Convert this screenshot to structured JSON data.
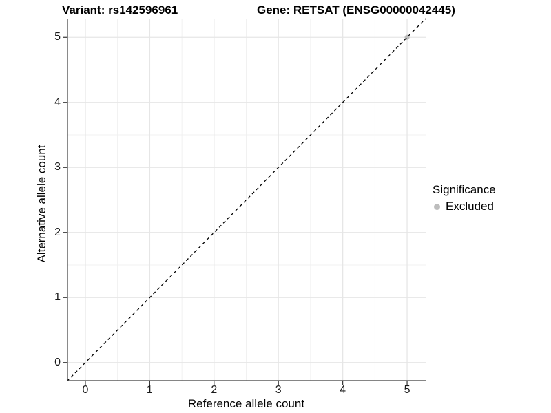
{
  "chart_data": {
    "type": "scatter",
    "titles": {
      "variant": "Variant: rs142596961",
      "gene": "Gene: RETSAT (ENSG00000042445)"
    },
    "xlabel": "Reference allele count",
    "ylabel": "Alternative allele count",
    "xlim": [
      -0.2885,
      5.2885
    ],
    "ylim": [
      -0.2885,
      5.2885
    ],
    "x_ticks": [
      0,
      1,
      2,
      3,
      4,
      5
    ],
    "y_ticks": [
      0,
      1,
      2,
      3,
      4,
      5
    ],
    "x_minor_ticks": [
      0.5,
      1.5,
      2.5,
      3.5,
      4.5
    ],
    "y_minor_ticks": [
      0.5,
      1.5,
      2.5,
      3.5,
      4.5
    ],
    "grid": "major+minor",
    "points": [
      {
        "x": 5,
        "y": 5,
        "series": "Excluded"
      }
    ],
    "point_radius": 3.6,
    "reference_line": {
      "type": "identity",
      "slope": 1,
      "intercept": 0,
      "style": "dashed",
      "color": "#000000"
    },
    "legend": {
      "title": "Significance",
      "position": "right",
      "items": [
        {
          "label": "Excluded",
          "color": "#bdbdbd",
          "marker": "circle"
        }
      ]
    },
    "style": {
      "background": "#ffffff",
      "grid_major_color": "#e6e6e6",
      "grid_minor_color": "#eeeeee",
      "axis_line_color": "#3c3c3c",
      "tick_mark_color": "#333333",
      "tick_label_color": "#1a1a1a",
      "text_color": "#000000"
    }
  }
}
